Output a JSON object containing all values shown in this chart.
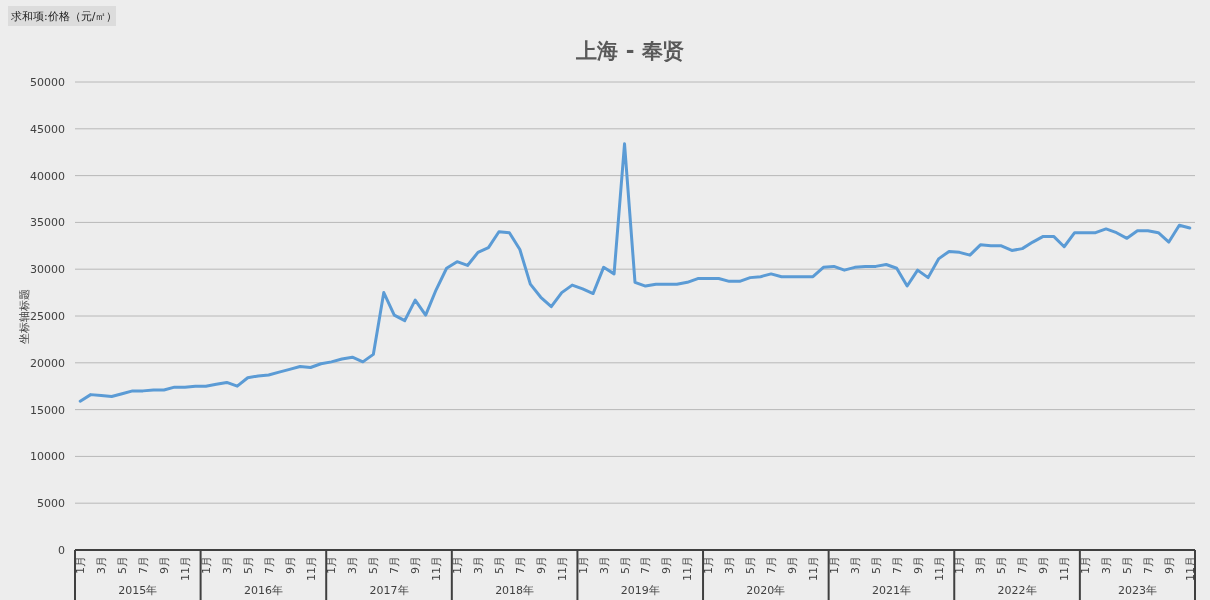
{
  "chart_data": {
    "type": "line",
    "title": "上海 - 奉贤",
    "ylabel": "坐标轴标题",
    "annotations": [
      "求和项:价格（元/㎡）",
      "2015年",
      "2016年",
      "2017年",
      "2018年",
      "2019年",
      "2020年",
      "2021年",
      "2022年",
      "2023年"
    ],
    "categories": [
      "1月",
      null,
      "3月",
      null,
      "5月",
      null,
      "7月",
      null,
      "9月",
      null,
      "11月",
      null,
      "1月",
      null,
      "3月",
      null,
      "5月",
      null,
      "7月",
      null,
      "9月",
      null,
      "11月",
      null,
      "1月",
      null,
      "3月",
      null,
      "5月",
      null,
      "7月",
      null,
      "9月",
      null,
      "11月",
      null,
      "1月",
      null,
      "3月",
      null,
      "5月",
      null,
      "7月",
      null,
      "9月",
      null,
      "11月",
      null,
      "1月",
      null,
      "3月",
      null,
      "5月",
      null,
      "7月",
      null,
      "9月",
      null,
      "11月",
      null,
      "1月",
      null,
      "3月",
      null,
      "5月",
      null,
      "7月",
      null,
      "9月",
      null,
      "11月",
      null,
      "1月",
      null,
      "3月",
      null,
      "5月",
      null,
      "7月",
      null,
      "9月",
      null,
      "11月",
      null,
      "1月",
      null,
      "3月",
      null,
      "5月",
      null,
      "7月",
      null,
      "9月",
      null,
      "11月",
      null,
      "1月",
      null,
      "3月",
      null,
      "5月",
      null,
      "7月",
      null,
      "9月",
      null,
      "11月"
    ],
    "series": [
      {
        "color": "#5b9bd5",
        "values": [
          15900,
          16600,
          16500,
          16400,
          16700,
          17000,
          17000,
          17100,
          17100,
          17400,
          17400,
          17500,
          17500,
          17700,
          17900,
          17500,
          18400,
          18600,
          18700,
          19000,
          19300,
          19600,
          19500,
          19900,
          20100,
          20400,
          20600,
          20100,
          20900,
          27500,
          25100,
          24500,
          26700,
          25100,
          27800,
          30100,
          30800,
          30400,
          31800,
          32300,
          34000,
          33900,
          32100,
          28400,
          27000,
          26000,
          27500,
          28300,
          27900,
          27400,
          30200,
          29500,
          43400,
          28600,
          28200,
          28400,
          28400,
          28400,
          28600,
          29000,
          29000,
          29000,
          28700,
          28700,
          29100,
          29200,
          29500,
          29200,
          29200,
          29200,
          29200,
          30200,
          30300,
          29900,
          30200,
          30300,
          30300,
          30500,
          30100,
          28200,
          29900,
          29100,
          31100,
          31900,
          31800,
          31500,
          32600,
          32500,
          32500,
          32000,
          32200,
          32900,
          33500,
          33500,
          32400,
          33900,
          33900,
          33900,
          34300,
          33900,
          33300,
          34100,
          34100,
          33900,
          32900,
          34700,
          34400
        ]
      }
    ],
    "ylim": [
      0,
      50000
    ],
    "yticks": [
      0,
      5000,
      10000,
      15000,
      20000,
      25000,
      30000,
      35000,
      40000,
      45000,
      50000
    ],
    "grid": "y",
    "marker": "none",
    "line_style": "solid"
  }
}
